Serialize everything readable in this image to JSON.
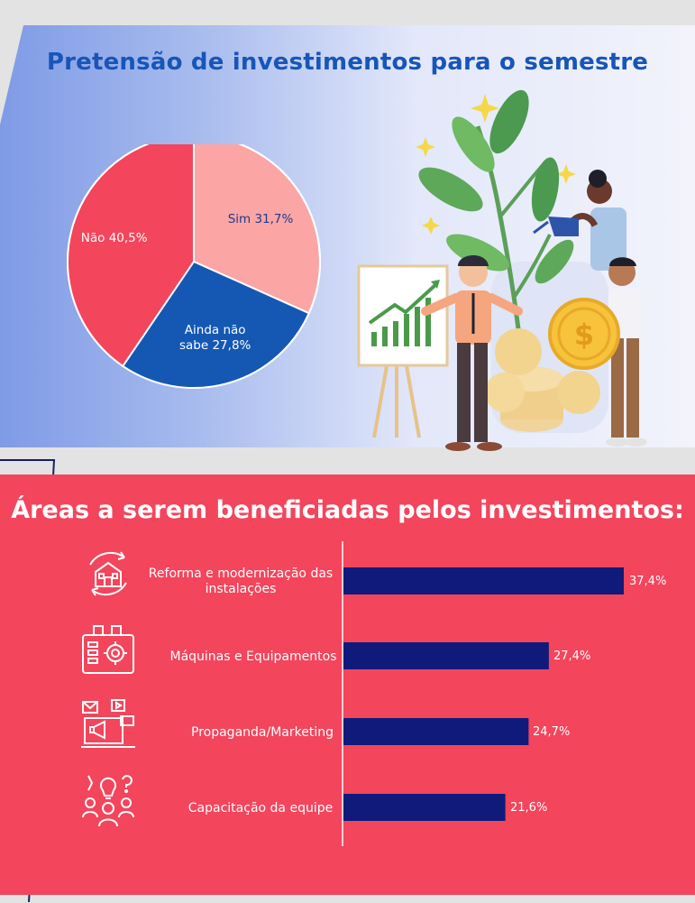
{
  "section1": {
    "title": "Pretensão de investimentos para o semestre"
  },
  "section2": {
    "title": "Áreas a serem beneficiadas pelos investimentos:"
  },
  "chart_data": [
    {
      "type": "pie",
      "title": "Pretensão de investimentos para o semestre",
      "slices": [
        {
          "label": "Sim",
          "value": 31.7,
          "display": "Sim 31,7%",
          "color": "#fca5a5"
        },
        {
          "label": "Ainda não sabe",
          "value": 27.8,
          "display": "Ainda não sabe 27,8%",
          "display_lines": [
            "Ainda não",
            "sabe 27,8%"
          ],
          "color": "#1458b4"
        },
        {
          "label": "Não",
          "value": 40.5,
          "display": "Não 40,5%",
          "color": "#f3455c"
        }
      ]
    },
    {
      "type": "bar",
      "orientation": "horizontal",
      "title": "Áreas a serem beneficiadas pelos investimentos:",
      "categories": [
        "Reforma e modernização das instalações",
        "Máquinas e Equipamentos",
        "Propaganda/Marketing",
        "Capacitação da equipe"
      ],
      "category_icons": [
        "building-renovation-icon",
        "machine-gear-icon",
        "marketing-megaphone-icon",
        "team-training-icon"
      ],
      "values": [
        37.4,
        27.4,
        24.7,
        21.6
      ],
      "value_labels": [
        "37,4%",
        "27,4%",
        "24,7%",
        "21,6%"
      ],
      "bar_color": "#101a7a"
    }
  ]
}
